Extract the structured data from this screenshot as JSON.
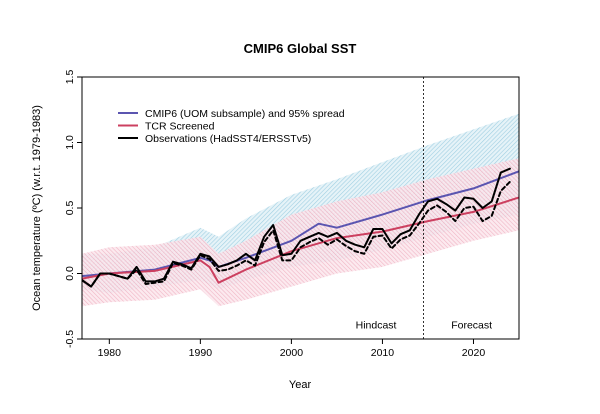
{
  "chart_data": {
    "type": "line",
    "title": "CMIP6 Global SST",
    "xlabel": "Year",
    "ylabel": "Ocean temperature (ºC) (w.r.t. 1979-1983)",
    "xlim": [
      1977,
      2025
    ],
    "ylim": [
      -0.5,
      1.5
    ],
    "xticks": [
      1980,
      1990,
      2000,
      2010,
      2020
    ],
    "yticks": [
      -0.5,
      0.0,
      0.5,
      1.0,
      1.5
    ],
    "ytick_labels": [
      "-0.5",
      "0.0",
      "0.5",
      "1.0",
      "1.5"
    ],
    "legend_position": "top-left",
    "grid": false,
    "divider_year": 2014.5,
    "regions": {
      "left": "Hindcast",
      "right": "Forecast"
    },
    "bands": [
      {
        "name": "CMIP6 (UOM subsample) and 95% spread",
        "color": "#b7dcea",
        "x": [
          1977,
          1980,
          1985,
          1990,
          1992,
          1995,
          2000,
          2005,
          2010,
          2015,
          2020,
          2025
        ],
        "lower": [
          -0.12,
          -0.15,
          -0.1,
          -0.05,
          -0.12,
          -0.05,
          0.05,
          0.1,
          0.18,
          0.28,
          0.38,
          0.45
        ],
        "upper": [
          0.15,
          0.15,
          0.2,
          0.35,
          0.28,
          0.42,
          0.6,
          0.72,
          0.85,
          0.98,
          1.1,
          1.22
        ]
      },
      {
        "name": "TCR Screened",
        "color": "#f2b9c6",
        "x": [
          1977,
          1980,
          1985,
          1990,
          1992,
          1995,
          2000,
          2005,
          2010,
          2015,
          2020,
          2025
        ],
        "lower": [
          -0.25,
          -0.22,
          -0.2,
          -0.12,
          -0.25,
          -0.2,
          -0.1,
          0.0,
          0.05,
          0.15,
          0.25,
          0.33
        ],
        "upper": [
          0.15,
          0.2,
          0.22,
          0.28,
          0.15,
          0.25,
          0.45,
          0.55,
          0.62,
          0.72,
          0.8,
          0.88
        ]
      }
    ],
    "series": [
      {
        "name": "CMIP6 (UOM subsample) and 95% spread",
        "color": "#5b55b0",
        "width": 2,
        "dash": "",
        "x": [
          1977,
          1980,
          1985,
          1990,
          1991,
          1992,
          1995,
          2000,
          2003,
          2005,
          2010,
          2015,
          2020,
          2025
        ],
        "y": [
          -0.02,
          0.0,
          0.03,
          0.12,
          0.1,
          0.05,
          0.12,
          0.25,
          0.38,
          0.35,
          0.45,
          0.56,
          0.65,
          0.78
        ]
      },
      {
        "name": "TCR Screened",
        "color": "#cc4060",
        "width": 2,
        "dash": "",
        "x": [
          1977,
          1980,
          1985,
          1990,
          1991,
          1992,
          1995,
          2000,
          2005,
          2010,
          2015,
          2020,
          2025
        ],
        "y": [
          -0.04,
          0.0,
          0.02,
          0.1,
          0.05,
          -0.07,
          0.03,
          0.17,
          0.27,
          0.32,
          0.4,
          0.47,
          0.58
        ]
      },
      {
        "name": "Observations (HadSST4/ERSSTv5)",
        "color": "#000000",
        "width": 2,
        "dash": "",
        "x": [
          1977,
          1978,
          1979,
          1980,
          1981,
          1982,
          1983,
          1984,
          1985,
          1986,
          1987,
          1988,
          1989,
          1990,
          1991,
          1992,
          1993,
          1994,
          1995,
          1996,
          1997,
          1998,
          1999,
          2000,
          2001,
          2002,
          2003,
          2004,
          2005,
          2006,
          2007,
          2008,
          2009,
          2010,
          2011,
          2012,
          2013,
          2014,
          2015,
          2016,
          2017,
          2018,
          2019,
          2020,
          2021,
          2022,
          2023,
          2024
        ],
        "y": [
          -0.05,
          -0.1,
          0.0,
          0.0,
          -0.02,
          -0.04,
          0.05,
          -0.06,
          -0.06,
          -0.04,
          0.09,
          0.07,
          0.04,
          0.15,
          0.13,
          0.05,
          0.07,
          0.1,
          0.15,
          0.1,
          0.28,
          0.37,
          0.14,
          0.15,
          0.25,
          0.28,
          0.31,
          0.28,
          0.31,
          0.25,
          0.22,
          0.2,
          0.34,
          0.34,
          0.23,
          0.3,
          0.33,
          0.45,
          0.55,
          0.57,
          0.53,
          0.48,
          0.58,
          0.57,
          0.5,
          0.55,
          0.77,
          0.8
        ]
      },
      {
        "name": "Observations (dashed)",
        "color": "#000000",
        "width": 2,
        "dash": "4,3",
        "x": [
          1977,
          1978,
          1979,
          1980,
          1981,
          1982,
          1983,
          1984,
          1985,
          1986,
          1987,
          1988,
          1989,
          1990,
          1991,
          1992,
          1993,
          1994,
          1995,
          1996,
          1997,
          1998,
          1999,
          2000,
          2001,
          2002,
          2003,
          2004,
          2005,
          2006,
          2007,
          2008,
          2009,
          2010,
          2011,
          2012,
          2013,
          2014,
          2015,
          2016,
          2017,
          2018,
          2019,
          2020,
          2021,
          2022,
          2023,
          2024
        ],
        "y": [
          -0.05,
          -0.1,
          0.0,
          0.0,
          -0.02,
          -0.04,
          0.03,
          -0.08,
          -0.07,
          -0.06,
          0.08,
          0.06,
          0.03,
          0.14,
          0.11,
          0.02,
          0.03,
          0.06,
          0.1,
          0.06,
          0.24,
          0.33,
          0.1,
          0.1,
          0.2,
          0.24,
          0.27,
          0.22,
          0.26,
          0.21,
          0.17,
          0.15,
          0.28,
          0.29,
          0.19,
          0.26,
          0.29,
          0.38,
          0.48,
          0.52,
          0.47,
          0.4,
          0.5,
          0.51,
          0.4,
          0.44,
          0.63,
          0.7
        ]
      }
    ],
    "legend": [
      {
        "label": "CMIP6 (UOM subsample) and 95% spread",
        "color": "#5b55b0"
      },
      {
        "label": "TCR Screened",
        "color": "#cc4060"
      },
      {
        "label": "Observations (HadSST4/ERSSTv5)",
        "color": "#000000"
      }
    ]
  }
}
